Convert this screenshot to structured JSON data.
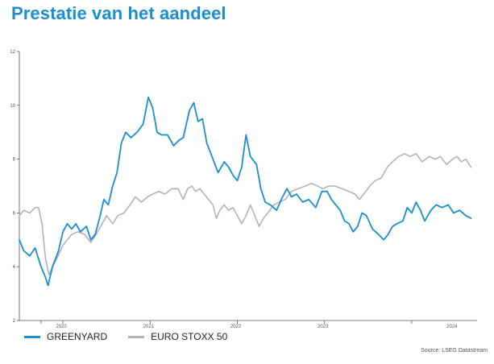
{
  "title": "Prestatie van het aandeel",
  "source": "Source: LSEG Datastream",
  "colors": {
    "title": "#1a8fcf"
  },
  "chart_data": {
    "type": "line",
    "title": "Prestatie van het aandeel",
    "xlabel": "",
    "ylabel": "",
    "ylim": [
      2,
      12
    ],
    "yticks": [
      2,
      4,
      6,
      8,
      10,
      12
    ],
    "xlim": [
      2019.5,
      2024.75
    ],
    "xticks": [
      {
        "label": "2020",
        "value": 2020.0
      },
      {
        "label": "2021",
        "value": 2021.0
      },
      {
        "label": "2022",
        "value": 2022.0
      },
      {
        "label": "2023",
        "value": 2023.0
      },
      {
        "label": "2024",
        "value": 2024.0
      }
    ],
    "grid": false,
    "legend": "bottom-left",
    "series": [
      {
        "name": "GREENYARD",
        "color": "#1a8fcf",
        "points": [
          [
            2019.5,
            5.0
          ],
          [
            2019.55,
            4.6
          ],
          [
            2019.62,
            4.4
          ],
          [
            2019.68,
            4.7
          ],
          [
            2019.75,
            4.0
          ],
          [
            2019.8,
            3.6
          ],
          [
            2019.83,
            3.3
          ],
          [
            2019.88,
            4.0
          ],
          [
            2019.95,
            4.6
          ],
          [
            2020.0,
            5.3
          ],
          [
            2020.05,
            5.6
          ],
          [
            2020.1,
            5.4
          ],
          [
            2020.15,
            5.6
          ],
          [
            2020.2,
            5.3
          ],
          [
            2020.27,
            5.5
          ],
          [
            2020.32,
            5.0
          ],
          [
            2020.37,
            5.2
          ],
          [
            2020.42,
            5.8
          ],
          [
            2020.47,
            6.5
          ],
          [
            2020.52,
            6.3
          ],
          [
            2020.57,
            7.0
          ],
          [
            2020.62,
            7.5
          ],
          [
            2020.67,
            8.6
          ],
          [
            2020.72,
            9.0
          ],
          [
            2020.78,
            8.8
          ],
          [
            2020.85,
            9.0
          ],
          [
            2020.92,
            9.3
          ],
          [
            2020.98,
            10.3
          ],
          [
            2021.03,
            9.9
          ],
          [
            2021.08,
            9.0
          ],
          [
            2021.13,
            8.9
          ],
          [
            2021.2,
            8.9
          ],
          [
            2021.27,
            8.5
          ],
          [
            2021.33,
            8.7
          ],
          [
            2021.38,
            8.8
          ],
          [
            2021.45,
            9.8
          ],
          [
            2021.5,
            10.1
          ],
          [
            2021.55,
            9.4
          ],
          [
            2021.6,
            9.5
          ],
          [
            2021.65,
            8.6
          ],
          [
            2021.72,
            8.0
          ],
          [
            2021.78,
            7.5
          ],
          [
            2021.85,
            7.9
          ],
          [
            2021.9,
            7.7
          ],
          [
            2021.95,
            7.4
          ],
          [
            2022.0,
            7.2
          ],
          [
            2022.05,
            7.7
          ],
          [
            2022.1,
            8.9
          ],
          [
            2022.15,
            8.1
          ],
          [
            2022.22,
            7.8
          ],
          [
            2022.27,
            6.9
          ],
          [
            2022.32,
            6.4
          ],
          [
            2022.38,
            6.3
          ],
          [
            2022.45,
            6.1
          ],
          [
            2022.52,
            6.6
          ],
          [
            2022.57,
            6.9
          ],
          [
            2022.62,
            6.6
          ],
          [
            2022.68,
            6.7
          ],
          [
            2022.75,
            6.4
          ],
          [
            2022.82,
            6.5
          ],
          [
            2022.9,
            6.2
          ],
          [
            2022.97,
            6.8
          ],
          [
            2023.03,
            6.8
          ],
          [
            2023.08,
            6.5
          ],
          [
            2023.13,
            6.3
          ],
          [
            2023.18,
            6.1
          ],
          [
            2023.23,
            5.7
          ],
          [
            2023.28,
            5.6
          ],
          [
            2023.33,
            5.3
          ],
          [
            2023.38,
            5.5
          ],
          [
            2023.43,
            6.0
          ],
          [
            2023.48,
            5.9
          ],
          [
            2023.55,
            5.4
          ],
          [
            2023.62,
            5.2
          ],
          [
            2023.68,
            5.0
          ],
          [
            2023.73,
            5.2
          ],
          [
            2023.78,
            5.5
          ],
          [
            2023.83,
            5.6
          ],
          [
            2023.9,
            5.7
          ],
          [
            2023.95,
            6.2
          ],
          [
            2024.0,
            6.0
          ],
          [
            2024.05,
            6.4
          ],
          [
            2024.1,
            6.1
          ],
          [
            2024.15,
            5.7
          ],
          [
            2024.22,
            6.1
          ],
          [
            2024.28,
            6.3
          ],
          [
            2024.35,
            6.2
          ],
          [
            2024.42,
            6.3
          ],
          [
            2024.48,
            6.0
          ],
          [
            2024.55,
            6.1
          ],
          [
            2024.62,
            5.9
          ],
          [
            2024.68,
            5.8
          ]
        ]
      },
      {
        "name": "EURO STOXX 50",
        "color": "#b3b3b3",
        "points": [
          [
            2019.5,
            5.9
          ],
          [
            2019.55,
            6.1
          ],
          [
            2019.62,
            6.0
          ],
          [
            2019.68,
            6.2
          ],
          [
            2019.72,
            6.2
          ],
          [
            2019.76,
            5.6
          ],
          [
            2019.8,
            4.3
          ],
          [
            2019.84,
            3.7
          ],
          [
            2019.88,
            4.0
          ],
          [
            2019.93,
            4.3
          ],
          [
            2020.0,
            4.8
          ],
          [
            2020.05,
            5.0
          ],
          [
            2020.1,
            5.2
          ],
          [
            2020.17,
            5.3
          ],
          [
            2020.25,
            5.2
          ],
          [
            2020.32,
            4.9
          ],
          [
            2020.38,
            5.2
          ],
          [
            2020.45,
            5.6
          ],
          [
            2020.5,
            5.9
          ],
          [
            2020.57,
            5.6
          ],
          [
            2020.63,
            5.9
          ],
          [
            2020.7,
            6.0
          ],
          [
            2020.77,
            6.3
          ],
          [
            2020.83,
            6.6
          ],
          [
            2020.9,
            6.4
          ],
          [
            2020.97,
            6.6
          ],
          [
            2021.03,
            6.7
          ],
          [
            2021.1,
            6.8
          ],
          [
            2021.17,
            6.7
          ],
          [
            2021.25,
            6.9
          ],
          [
            2021.32,
            6.9
          ],
          [
            2021.38,
            6.5
          ],
          [
            2021.43,
            6.9
          ],
          [
            2021.48,
            7.0
          ],
          [
            2021.52,
            6.8
          ],
          [
            2021.57,
            6.9
          ],
          [
            2021.62,
            6.7
          ],
          [
            2021.67,
            6.5
          ],
          [
            2021.72,
            6.3
          ],
          [
            2021.76,
            5.8
          ],
          [
            2021.8,
            6.1
          ],
          [
            2021.85,
            6.3
          ],
          [
            2021.9,
            6.1
          ],
          [
            2021.95,
            6.2
          ],
          [
            2022.0,
            5.9
          ],
          [
            2022.05,
            5.6
          ],
          [
            2022.1,
            5.9
          ],
          [
            2022.15,
            6.3
          ],
          [
            2022.2,
            5.9
          ],
          [
            2022.25,
            5.5
          ],
          [
            2022.3,
            5.8
          ],
          [
            2022.35,
            6.0
          ],
          [
            2022.42,
            6.3
          ],
          [
            2022.48,
            6.4
          ],
          [
            2022.55,
            6.5
          ],
          [
            2022.62,
            6.8
          ],
          [
            2022.7,
            6.9
          ],
          [
            2022.78,
            7.0
          ],
          [
            2022.85,
            7.1
          ],
          [
            2022.92,
            7.0
          ],
          [
            2022.98,
            6.9
          ],
          [
            2023.05,
            7.0
          ],
          [
            2023.12,
            7.0
          ],
          [
            2023.2,
            6.9
          ],
          [
            2023.28,
            6.8
          ],
          [
            2023.35,
            6.7
          ],
          [
            2023.4,
            6.5
          ],
          [
            2023.45,
            6.7
          ],
          [
            2023.52,
            7.0
          ],
          [
            2023.58,
            7.2
          ],
          [
            2023.65,
            7.3
          ],
          [
            2023.72,
            7.7
          ],
          [
            2023.78,
            7.9
          ],
          [
            2023.85,
            8.1
          ],
          [
            2023.92,
            8.2
          ],
          [
            2023.98,
            8.1
          ],
          [
            2024.05,
            8.2
          ],
          [
            2024.12,
            7.9
          ],
          [
            2024.2,
            8.1
          ],
          [
            2024.27,
            8.0
          ],
          [
            2024.33,
            8.1
          ],
          [
            2024.4,
            7.8
          ],
          [
            2024.47,
            8.0
          ],
          [
            2024.52,
            8.1
          ],
          [
            2024.57,
            7.9
          ],
          [
            2024.62,
            8.0
          ],
          [
            2024.68,
            7.7
          ]
        ]
      }
    ]
  }
}
